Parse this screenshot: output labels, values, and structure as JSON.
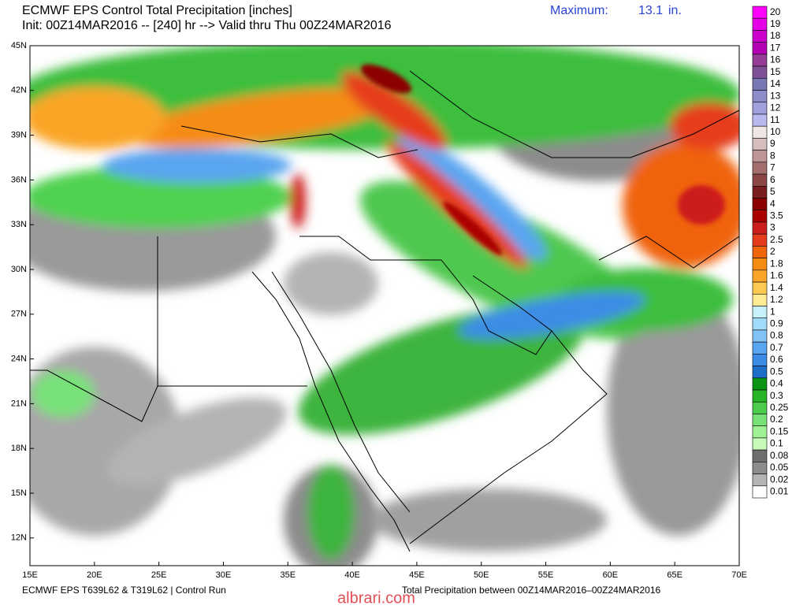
{
  "header": {
    "title": "ECMWF EPS Control Total Precipitation [inches]",
    "init": "Init: 00Z14MAR2016 -- [240] hr --> Valid thru Thu 00Z24MAR2016",
    "maximum_label": "Maximum:",
    "maximum_value": 13.1,
    "maximum_unit": "in."
  },
  "map": {
    "lat_labels": [
      "45N",
      "42N",
      "39N",
      "36N",
      "33N",
      "30N",
      "27N",
      "24N",
      "21N",
      "18N",
      "15N",
      "12N"
    ],
    "lon_labels": [
      "15E",
      "20E",
      "25E",
      "30E",
      "35E",
      "40E",
      "45E",
      "50E",
      "55E",
      "60E",
      "65E",
      "70E"
    ]
  },
  "legend": {
    "levels": [
      20,
      19,
      18,
      17,
      16,
      15,
      14,
      13,
      12,
      11,
      10,
      9,
      8,
      7,
      6,
      5,
      4,
      3.5,
      3,
      2.5,
      2,
      1.8,
      1.6,
      1.4,
      1.2,
      1,
      0.9,
      0.8,
      0.7,
      0.6,
      0.5,
      0.4,
      0.3,
      0.25,
      0.2,
      0.15,
      0.1,
      0.08,
      0.05,
      0.02,
      0.01
    ],
    "colors": [
      "#ff00ff",
      "#e600e6",
      "#cc00cc",
      "#b400b4",
      "#963c96",
      "#7e5096",
      "#7878b4",
      "#8c8cc8",
      "#a0a0dc",
      "#b9b9f0",
      "#f0e6e6",
      "#d7bebe",
      "#be9696",
      "#a56e6e",
      "#8c4646",
      "#781e1e",
      "#8c0000",
      "#aa0000",
      "#cd1e1e",
      "#e63c1e",
      "#f0640a",
      "#f58c14",
      "#faa528",
      "#ffc850",
      "#ffeb96",
      "#c8f0fa",
      "#a0dcfa",
      "#82c3f5",
      "#5aa5f0",
      "#3c8ce6",
      "#1e6ec8",
      "#0a9614",
      "#28b428",
      "#4bcd4b",
      "#78e178",
      "#a0f096",
      "#c8fab9",
      "#6e6e6e",
      "#8c8c8c",
      "#b4b4b4",
      "#ffffff"
    ]
  },
  "footer": {
    "left": "ECMWF EPS T639L62 & T319L62 | Control Run",
    "right": "Total Precipitation between 00Z14MAR2016–00Z24MAR2016",
    "watermark": "albrari.com"
  }
}
